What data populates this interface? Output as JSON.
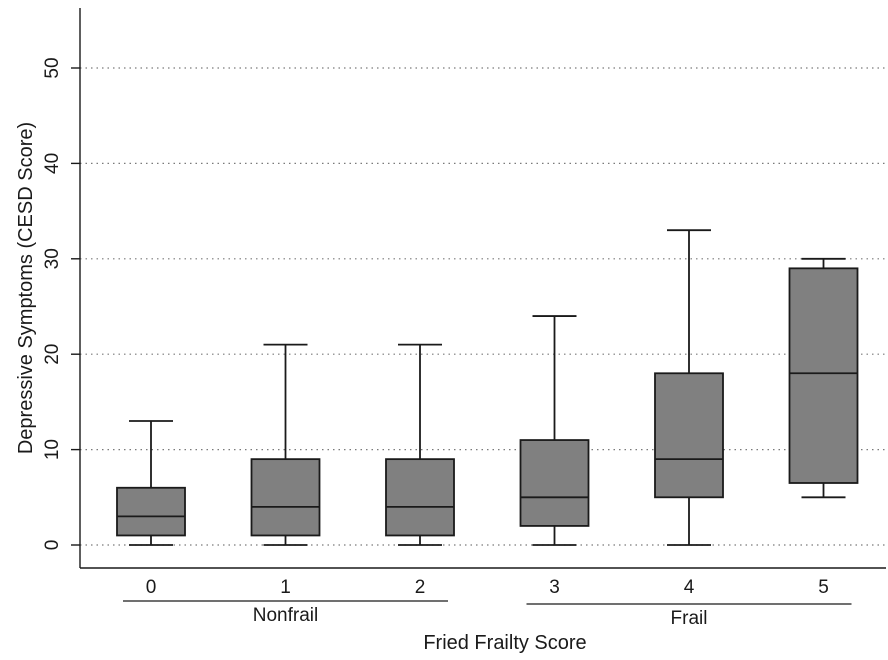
{
  "chart_data": {
    "type": "box",
    "title": "",
    "xlabel": "Fried Frailty Score",
    "ylabel": "Depressive Symptoms (CESD Score)",
    "ylim": [
      0,
      55
    ],
    "yticks": [
      0,
      10,
      20,
      30,
      40,
      50
    ],
    "grid": true,
    "categories": [
      "0",
      "1",
      "2",
      "3",
      "4",
      "5"
    ],
    "boxes": [
      {
        "category": "0",
        "whisker_low": 0,
        "q1": 1,
        "median": 3,
        "q3": 6,
        "whisker_high": 13
      },
      {
        "category": "1",
        "whisker_low": 0,
        "q1": 1,
        "median": 4,
        "q3": 9,
        "whisker_high": 21
      },
      {
        "category": "2",
        "whisker_low": 0,
        "q1": 1,
        "median": 4,
        "q3": 9,
        "whisker_high": 21
      },
      {
        "category": "3",
        "whisker_low": 0,
        "q1": 2,
        "median": 5,
        "q3": 11,
        "whisker_high": 24
      },
      {
        "category": "4",
        "whisker_low": 0,
        "q1": 5,
        "median": 9,
        "q3": 18,
        "whisker_high": 33
      },
      {
        "category": "5",
        "whisker_low": 5,
        "q1": 6.5,
        "median": 18,
        "q3": 29,
        "whisker_high": 30
      }
    ],
    "groups": [
      {
        "label": "Nonfrail",
        "categories": [
          "0",
          "1",
          "2"
        ]
      },
      {
        "label": "Frail",
        "categories": [
          "3",
          "4",
          "5"
        ]
      }
    ],
    "colors": {
      "box_fill": "#808080",
      "line": "#1a1a1a",
      "grid": "#7a7a7a"
    }
  }
}
